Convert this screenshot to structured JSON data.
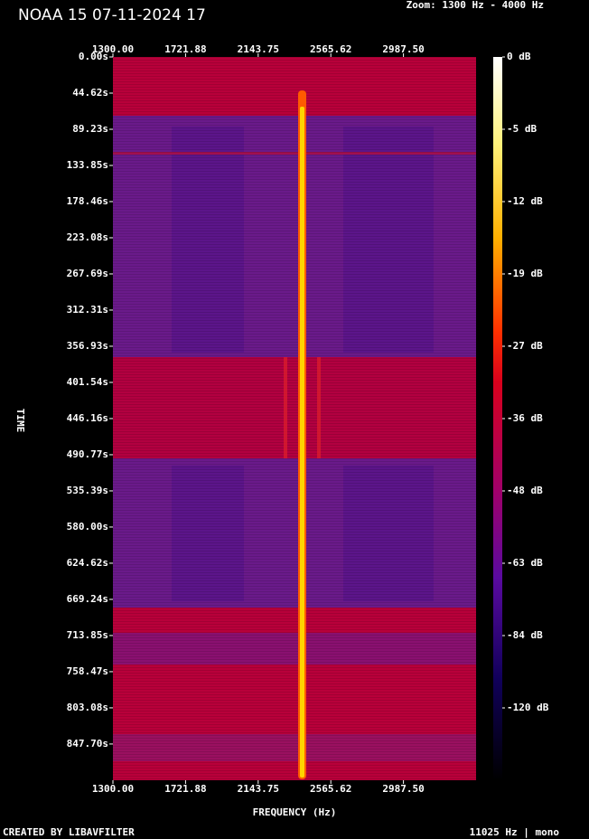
{
  "chart_data": {
    "type": "spectrogram",
    "title": "NOAA 15 07-11-2024 17",
    "subtitle": "Zoom: 1300 Hz - 4000 Hz",
    "x_label": "FREQUENCY (Hz)",
    "y_label": "TIME",
    "footer_left": "CREATED BY LIBAVFILTER",
    "footer_right": "11025 Hz | mono",
    "xlim": [
      1300,
      3409.375
    ],
    "xticks": [
      {
        "value": 1300,
        "label": "1300.00"
      },
      {
        "value": 1721.88,
        "label": "1721.88"
      },
      {
        "value": 2143.75,
        "label": "2143.75"
      },
      {
        "value": 2565.62,
        "label": "2565.62"
      },
      {
        "value": 2987.5,
        "label": "2987.50"
      }
    ],
    "ylim": [
      0,
      892.4
    ],
    "yticks": [
      {
        "value": 0,
        "label": "0.00s"
      },
      {
        "value": 44.62,
        "label": "44.62s"
      },
      {
        "value": 89.23,
        "label": "89.23s"
      },
      {
        "value": 133.85,
        "label": "133.85s"
      },
      {
        "value": 178.46,
        "label": "178.46s"
      },
      {
        "value": 223.08,
        "label": "223.08s"
      },
      {
        "value": 267.69,
        "label": "267.69s"
      },
      {
        "value": 312.31,
        "label": "312.31s"
      },
      {
        "value": 356.93,
        "label": "356.93s"
      },
      {
        "value": 401.54,
        "label": "401.54s"
      },
      {
        "value": 446.16,
        "label": "446.16s"
      },
      {
        "value": 490.77,
        "label": "490.77s"
      },
      {
        "value": 535.39,
        "label": "535.39s"
      },
      {
        "value": 580,
        "label": "580.00s"
      },
      {
        "value": 624.62,
        "label": "624.62s"
      },
      {
        "value": 669.24,
        "label": "669.24s"
      },
      {
        "value": 713.85,
        "label": "713.85s"
      },
      {
        "value": 758.47,
        "label": "758.47s"
      },
      {
        "value": 803.08,
        "label": "803.08s"
      },
      {
        "value": 847.7,
        "label": "847.70s"
      }
    ],
    "colorbar_ticks": [
      {
        "value": 0,
        "label": "0 dB"
      },
      {
        "value": -5,
        "label": "-5 dB"
      },
      {
        "value": -12,
        "label": "-12 dB"
      },
      {
        "value": -19,
        "label": "-19 dB"
      },
      {
        "value": -27,
        "label": "-27 dB"
      },
      {
        "value": -36,
        "label": "-36 dB"
      },
      {
        "value": -48,
        "label": "-48 dB"
      },
      {
        "value": -63,
        "label": "-63 dB"
      },
      {
        "value": -84,
        "label": "-84 dB"
      },
      {
        "value": -120,
        "label": "-120 dB"
      }
    ]
  }
}
